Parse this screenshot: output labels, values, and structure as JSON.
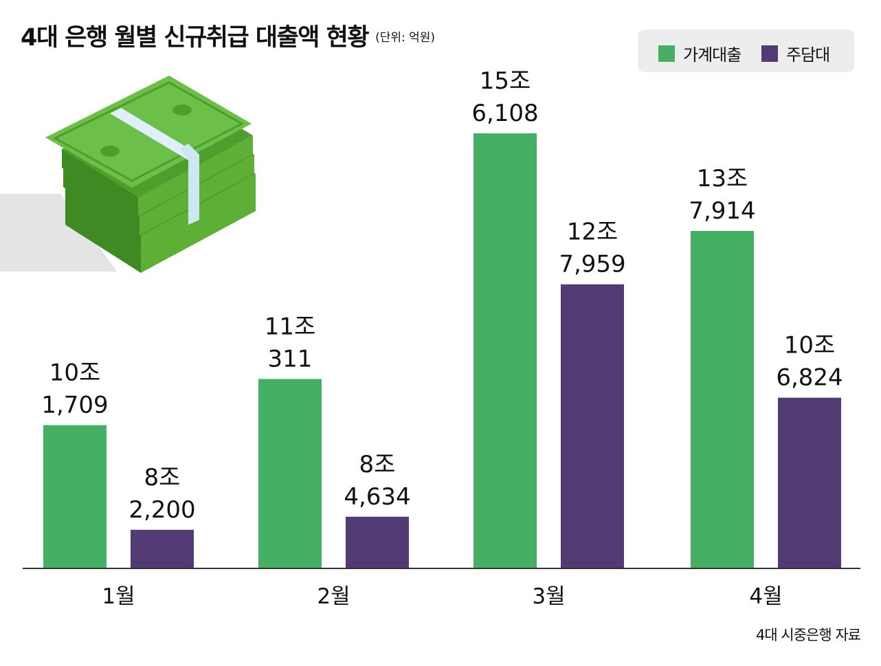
{
  "title": "4대 은행 월별 신규취급 대출액 현황",
  "unit_note": "(단위: 억원)",
  "source": "4대 시중은행 자료",
  "colors": {
    "household": "#45b063",
    "mortgage": "#523a72",
    "legend_bg": "#ededed"
  },
  "icon": "money-stack-icon",
  "chart_data": {
    "type": "bar",
    "title": "4대 은행 월별 신규취급 대출액 현황",
    "xlabel": "",
    "ylabel": "억원",
    "ylim": [
      0,
      160000
    ],
    "categories": [
      "1월",
      "2월",
      "3월",
      "4월"
    ],
    "series": [
      {
        "name": "가계대출",
        "values": [
          101709,
          110311,
          156108,
          137914
        ],
        "labels": [
          [
            "10조",
            "1,709"
          ],
          [
            "11조",
            "311"
          ],
          [
            "15조",
            "6,108"
          ],
          [
            "13조",
            "7,914"
          ]
        ]
      },
      {
        "name": "주담대",
        "values": [
          82200,
          84634,
          127959,
          106824
        ],
        "labels": [
          [
            "8조",
            "2,200"
          ],
          [
            "8조",
            "4,634"
          ],
          [
            "12조",
            "7,959"
          ],
          [
            "10조",
            "6,824"
          ]
        ]
      }
    ],
    "legend": "top-right"
  }
}
